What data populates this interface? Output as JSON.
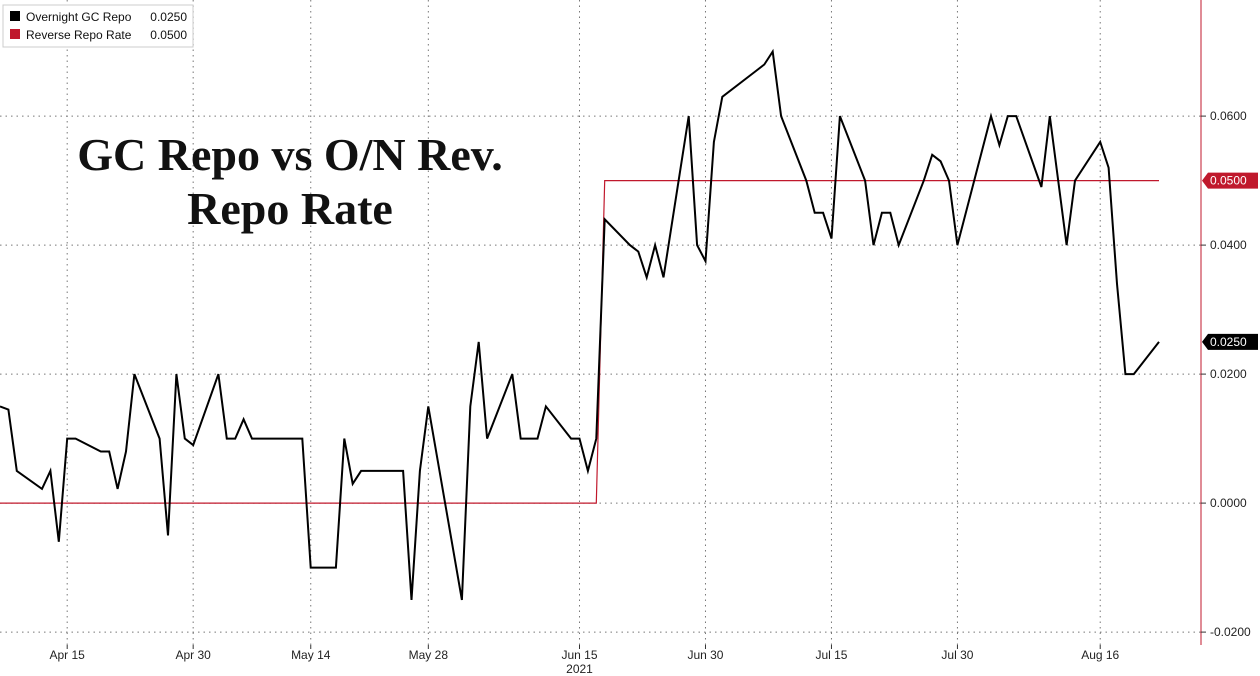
{
  "chart_data": {
    "type": "line",
    "title": "GC Repo vs O/N Rev. Repo Rate",
    "title_lines": [
      "GC Repo vs O/N Rev.",
      "Repo Rate"
    ],
    "legend": {
      "placement": "top-left",
      "entries": [
        {
          "name": "Overnight GC Repo",
          "value": "0.0250",
          "color": "#000000"
        },
        {
          "name": "Reverse Repo Rate",
          "value": "0.0500",
          "color": "#c0182c"
        }
      ]
    },
    "x_axis": {
      "range": [
        "2021-04-07",
        "2021-08-28"
      ],
      "ticks": [
        {
          "date": "2021-04-15",
          "label": "Apr 15"
        },
        {
          "date": "2021-04-30",
          "label": "Apr 30"
        },
        {
          "date": "2021-05-14",
          "label": "May 14"
        },
        {
          "date": "2021-05-28",
          "label": "May 28"
        },
        {
          "date": "2021-06-15",
          "label": "Jun 15"
        },
        {
          "date": "2021-06-30",
          "label": "Jun 30"
        },
        {
          "date": "2021-07-15",
          "label": "Jul 15"
        },
        {
          "date": "2021-07-30",
          "label": "Jul 30"
        },
        {
          "date": "2021-08-16",
          "label": "Aug 16"
        }
      ],
      "year_label": {
        "date": "2021-06-15",
        "label": "2021"
      }
    },
    "y_axis": {
      "position": "right",
      "range": [
        -0.022,
        0.078
      ],
      "ticks": [
        {
          "value": 0.06,
          "label": "0.0600"
        },
        {
          "value": 0.04,
          "label": "0.0400"
        },
        {
          "value": 0.02,
          "label": "0.0200"
        },
        {
          "value": 0.0,
          "label": "0.0000"
        },
        {
          "value": -0.02,
          "label": "-0.0200"
        }
      ]
    },
    "grid": true,
    "series": [
      {
        "name": "Overnight GC Repo",
        "color": "#000000",
        "last_value_label": "0.0250",
        "points": [
          [
            "2021-04-07",
            0.015
          ],
          [
            "2021-04-08",
            0.0145
          ],
          [
            "2021-04-09",
            0.005
          ],
          [
            "2021-04-12",
            0.0022
          ],
          [
            "2021-04-13",
            0.005
          ],
          [
            "2021-04-14",
            -0.006
          ],
          [
            "2021-04-15",
            0.01
          ],
          [
            "2021-04-16",
            0.01
          ],
          [
            "2021-04-19",
            0.008
          ],
          [
            "2021-04-20",
            0.008
          ],
          [
            "2021-04-21",
            0.0022
          ],
          [
            "2021-04-22",
            0.008
          ],
          [
            "2021-04-23",
            0.02
          ],
          [
            "2021-04-26",
            0.01
          ],
          [
            "2021-04-27",
            -0.005
          ],
          [
            "2021-04-28",
            0.02
          ],
          [
            "2021-04-29",
            0.01
          ],
          [
            "2021-04-30",
            0.009
          ],
          [
            "2021-05-03",
            0.02
          ],
          [
            "2021-05-04",
            0.01
          ],
          [
            "2021-05-05",
            0.01
          ],
          [
            "2021-05-06",
            0.013
          ],
          [
            "2021-05-07",
            0.01
          ],
          [
            "2021-05-10",
            0.01
          ],
          [
            "2021-05-11",
            0.01
          ],
          [
            "2021-05-12",
            0.01
          ],
          [
            "2021-05-13",
            0.01
          ],
          [
            "2021-05-14",
            -0.01
          ],
          [
            "2021-05-17",
            -0.01
          ],
          [
            "2021-05-18",
            0.01
          ],
          [
            "2021-05-19",
            0.003
          ],
          [
            "2021-05-20",
            0.005
          ],
          [
            "2021-05-21",
            0.005
          ],
          [
            "2021-05-24",
            0.005
          ],
          [
            "2021-05-25",
            0.005
          ],
          [
            "2021-05-26",
            -0.015
          ],
          [
            "2021-05-27",
            0.005
          ],
          [
            "2021-05-28",
            0.015
          ],
          [
            "2021-06-01",
            -0.015
          ],
          [
            "2021-06-02",
            0.015
          ],
          [
            "2021-06-03",
            0.025
          ],
          [
            "2021-06-04",
            0.01
          ],
          [
            "2021-06-07",
            0.02
          ],
          [
            "2021-06-08",
            0.01
          ],
          [
            "2021-06-09",
            0.01
          ],
          [
            "2021-06-10",
            0.01
          ],
          [
            "2021-06-11",
            0.015
          ],
          [
            "2021-06-14",
            0.01
          ],
          [
            "2021-06-15",
            0.01
          ],
          [
            "2021-06-16",
            0.005
          ],
          [
            "2021-06-17",
            0.01
          ],
          [
            "2021-06-18",
            0.044
          ],
          [
            "2021-06-21",
            0.04
          ],
          [
            "2021-06-22",
            0.039
          ],
          [
            "2021-06-23",
            0.035
          ],
          [
            "2021-06-24",
            0.04
          ],
          [
            "2021-06-25",
            0.035
          ],
          [
            "2021-06-28",
            0.06
          ],
          [
            "2021-06-29",
            0.04
          ],
          [
            "2021-06-30",
            0.0375
          ],
          [
            "2021-07-01",
            0.056
          ],
          [
            "2021-07-02",
            0.063
          ],
          [
            "2021-07-06",
            0.067
          ],
          [
            "2021-07-07",
            0.068
          ],
          [
            "2021-07-08",
            0.07
          ],
          [
            "2021-07-09",
            0.06
          ],
          [
            "2021-07-12",
            0.05
          ],
          [
            "2021-07-13",
            0.045
          ],
          [
            "2021-07-14",
            0.045
          ],
          [
            "2021-07-15",
            0.041
          ],
          [
            "2021-07-16",
            0.06
          ],
          [
            "2021-07-19",
            0.05
          ],
          [
            "2021-07-20",
            0.04
          ],
          [
            "2021-07-21",
            0.045
          ],
          [
            "2021-07-22",
            0.045
          ],
          [
            "2021-07-23",
            0.04
          ],
          [
            "2021-07-26",
            0.05
          ],
          [
            "2021-07-27",
            0.054
          ],
          [
            "2021-07-28",
            0.053
          ],
          [
            "2021-07-29",
            0.05
          ],
          [
            "2021-07-30",
            0.04
          ],
          [
            "2021-08-02",
            0.055
          ],
          [
            "2021-08-03",
            0.06
          ],
          [
            "2021-08-04",
            0.0555
          ],
          [
            "2021-08-05",
            0.06
          ],
          [
            "2021-08-06",
            0.06
          ],
          [
            "2021-08-09",
            0.049
          ],
          [
            "2021-08-10",
            0.06
          ],
          [
            "2021-08-11",
            0.05
          ],
          [
            "2021-08-12",
            0.04
          ],
          [
            "2021-08-13",
            0.05
          ],
          [
            "2021-08-16",
            0.056
          ],
          [
            "2021-08-17",
            0.052
          ],
          [
            "2021-08-18",
            0.034
          ],
          [
            "2021-08-19",
            0.02
          ],
          [
            "2021-08-20",
            0.02
          ],
          [
            "2021-08-23",
            0.025
          ]
        ]
      },
      {
        "name": "Reverse Repo Rate",
        "color": "#c0182c",
        "last_value_label": "0.0500",
        "points": [
          [
            "2021-04-07",
            0.0
          ],
          [
            "2021-06-17",
            0.0
          ],
          [
            "2021-06-18",
            0.05
          ],
          [
            "2021-08-23",
            0.05
          ]
        ]
      }
    ]
  }
}
